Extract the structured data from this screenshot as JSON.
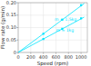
{
  "chart_data": {
    "type": "line",
    "title": "",
    "xlabel": "Speed (rpm)",
    "ylabel": "Flow rate (g/min)",
    "xlim": [
      0,
      1100
    ],
    "ylim": [
      0,
      0.2
    ],
    "xticks": [
      0,
      200,
      400,
      600,
      800,
      1000
    ],
    "yticks": [
      0,
      0.05,
      {
        "value": 0.1,
        "label": "0.10"
      },
      0.15,
      {
        "value": 0.2,
        "label": "0.20"
      }
    ],
    "grid": true,
    "marker": "square",
    "series": [
      {
        "name": "m = 1.5kg",
        "color": "#00e5ff",
        "label_at": [
          580,
          0.125
        ],
        "line_x": [
          0,
          1050
        ],
        "line_y": [
          0,
          0.197
        ],
        "x": [
          400,
          700,
          1000
        ],
        "values": [
          0.075,
          0.132,
          0.19
        ]
      },
      {
        "name": "m = 1kg",
        "color": "#00e5ff",
        "label_at": [
          600,
          0.083
        ],
        "line_x": [
          0,
          1050
        ],
        "line_y": [
          0,
          0.142
        ],
        "x": [
          400,
          700,
          1000
        ],
        "values": [
          0.054,
          0.095,
          0.137
        ]
      }
    ]
  }
}
